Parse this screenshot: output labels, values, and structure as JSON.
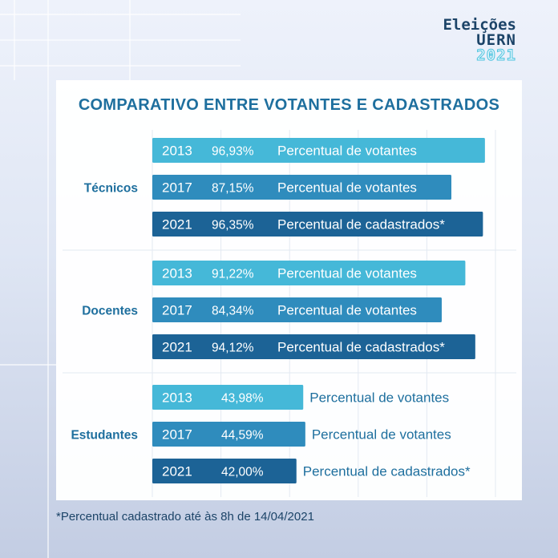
{
  "logo": {
    "line1": "Eleições",
    "line2": "UERN",
    "line3": "2021"
  },
  "footnote": "*Percentual cadastrado até às 8h de 14/04/2021",
  "colors": {
    "2013": "#45b8d8",
    "2017": "#2f8cbd",
    "2021": "#1c6396",
    "group_label": "#1e6f9e",
    "outside_text": "#1e6f9e"
  },
  "chart_data": {
    "type": "bar",
    "orientation": "horizontal",
    "title": "COMPARATIVO ENTRE VOTANTES E CADASTRADOS",
    "groups": [
      {
        "name": "Técnicos",
        "bars": [
          {
            "year": "2013",
            "value": 96.93,
            "value_label": "96,93%",
            "label": "Percentual de votantes"
          },
          {
            "year": "2017",
            "value": 87.15,
            "value_label": "87,15%",
            "label": "Percentual de votantes"
          },
          {
            "year": "2021",
            "value": 96.35,
            "value_label": "96,35%",
            "label": "Percentual de cadastrados*"
          }
        ]
      },
      {
        "name": "Docentes",
        "bars": [
          {
            "year": "2013",
            "value": 91.22,
            "value_label": "91,22%",
            "label": "Percentual de votantes"
          },
          {
            "year": "2017",
            "value": 84.34,
            "value_label": "84,34%",
            "label": "Percentual de votantes"
          },
          {
            "year": "2021",
            "value": 94.12,
            "value_label": "94,12%",
            "label": "Percentual de cadastrados*"
          }
        ]
      },
      {
        "name": "Estudantes",
        "bars": [
          {
            "year": "2013",
            "value": 43.98,
            "value_label": "43,98%",
            "label": "Percentual de votantes"
          },
          {
            "year": "2017",
            "value": 44.59,
            "value_label": "44,59%",
            "label": "Percentual de votantes"
          },
          {
            "year": "2021",
            "value": 42.0,
            "value_label": "42,00%",
            "label": "Percentual de cadastrados*"
          }
        ]
      }
    ],
    "xlim": [
      0,
      100
    ],
    "grid": true,
    "legend": "none"
  }
}
